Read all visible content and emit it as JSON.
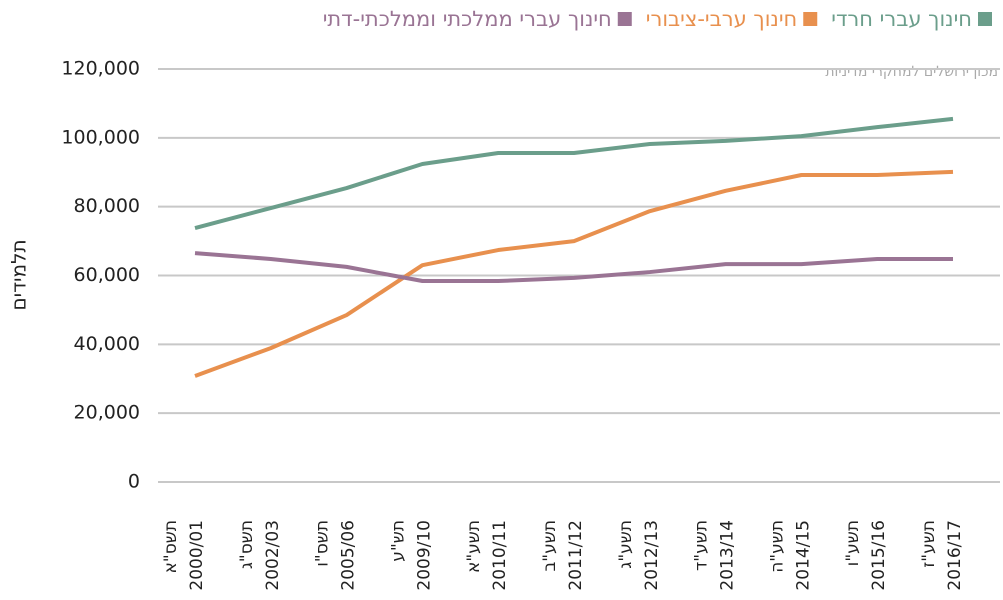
{
  "chart_data": {
    "type": "line",
    "annotation": "מכון ירושלים למחקרי מדיניות",
    "y_label": "תלמידים",
    "categories": [
      [
        "תשס\"א",
        "2000/01"
      ],
      [
        "תשס\"ג",
        "2002/03"
      ],
      [
        "תשס\"ו",
        "2005/06"
      ],
      [
        "תש\"ע",
        "2009/10"
      ],
      [
        "תשע\"א",
        "2010/11"
      ],
      [
        "תשע\"ב",
        "2011/12"
      ],
      [
        "תשע\"ג",
        "2012/13"
      ],
      [
        "תשע\"ד",
        "2013/14"
      ],
      [
        "תשע\"ה",
        "2014/15"
      ],
      [
        "תשע\"ו",
        "2015/16"
      ],
      [
        "תשע\"ז",
        "2016/17"
      ]
    ],
    "series": [
      {
        "name": "חינוך עברי חרדי",
        "color": "#6b9e8b",
        "values": [
          73800,
          79600,
          85400,
          92400,
          95600,
          95600,
          98200,
          99100,
          100500,
          103100,
          105500
        ]
      },
      {
        "name": "חינוך ערבי-ציבורי",
        "color": "#e8904e",
        "values": [
          30800,
          38900,
          48500,
          63000,
          67400,
          70000,
          78700,
          84600,
          89200,
          89200,
          90100
        ]
      },
      {
        "name": "חינוך עברי ממלכתי וממלכתי-דתי",
        "color": "#9a7494",
        "values": [
          66500,
          64800,
          62500,
          58400,
          58400,
          59300,
          61000,
          63300,
          63300,
          64800,
          64800
        ]
      }
    ],
    "ylim": [
      0,
      120000
    ],
    "yticks": [
      0,
      {
        "value": 20000,
        "label": "20,000"
      },
      {
        "value": 40000,
        "label": "40,000"
      },
      {
        "value": 60000,
        "label": "60,000"
      },
      {
        "value": 80000,
        "label": "80,000"
      },
      {
        "value": 100000,
        "label": "100,000"
      },
      {
        "value": 120000,
        "label": "120,000"
      }
    ],
    "grid": true
  }
}
